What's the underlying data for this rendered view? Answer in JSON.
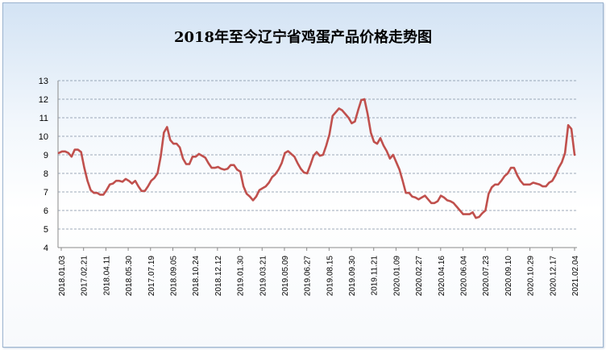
{
  "chart_data": {
    "type": "line",
    "title": "2018年至今辽宁省鸡蛋产品价格走势图",
    "xlabel": "",
    "ylabel": "",
    "ylim": [
      4,
      13
    ],
    "yticks": [
      4,
      5,
      6,
      7,
      8,
      9,
      10,
      11,
      12,
      13
    ],
    "grid": true,
    "legend": "none",
    "line_color": "#c0504d",
    "x_tick_labels": [
      "2018.01.03",
      "2017.02.21",
      "2018.04.11",
      "2018.05.30",
      "2017.07.19",
      "2018.09.05",
      "2018.10.24",
      "2018.12.12",
      "2019.01.30",
      "2019.03.21",
      "2019.05.09",
      "2019.06.27",
      "2019.08.15",
      "2019.09.30",
      "2019.11.21",
      "2020.01.09",
      "2020.02.27",
      "2020.04.16",
      "2020.06.04",
      "2020.07.23",
      "2020.09.10",
      "2020.10.29",
      "2020.12.17",
      "2021.02.04"
    ],
    "series": [
      {
        "values": [
          9.1,
          9.18,
          9.18,
          9.1,
          8.9,
          9.28,
          9.28,
          9.15,
          8.3,
          7.6,
          7.1,
          6.95,
          6.95,
          6.85,
          6.85,
          7.1,
          7.4,
          7.45,
          7.6,
          7.6,
          7.55,
          7.7,
          7.6,
          7.45,
          7.6,
          7.3,
          7.05,
          7.05,
          7.3,
          7.6,
          7.75,
          8.0,
          8.9,
          10.2,
          10.5,
          9.8,
          9.6,
          9.6,
          9.4,
          8.8,
          8.5,
          8.5,
          8.9,
          8.9,
          9.05,
          8.95,
          8.85,
          8.55,
          8.3,
          8.3,
          8.35,
          8.25,
          8.2,
          8.25,
          8.45,
          8.45,
          8.2,
          8.1,
          7.3,
          6.9,
          6.75,
          6.55,
          6.75,
          7.1,
          7.2,
          7.3,
          7.5,
          7.8,
          7.95,
          8.2,
          8.55,
          9.1,
          9.2,
          9.05,
          8.9,
          8.55,
          8.25,
          8.05,
          8.0,
          8.45,
          8.95,
          9.15,
          8.95,
          9.0,
          9.5,
          10.1,
          11.1,
          11.3,
          11.5,
          11.4,
          11.2,
          11.0,
          10.7,
          10.8,
          11.4,
          11.95,
          12.0,
          11.2,
          10.2,
          9.7,
          9.6,
          9.9,
          9.5,
          9.2,
          8.8,
          9.0,
          8.6,
          8.2,
          7.6,
          6.95,
          6.95,
          6.75,
          6.7,
          6.6,
          6.7,
          6.8,
          6.6,
          6.4,
          6.4,
          6.5,
          6.8,
          6.7,
          6.55,
          6.5,
          6.4,
          6.2,
          6.0,
          5.8,
          5.8,
          5.8,
          5.9,
          5.6,
          5.65,
          5.85,
          6.0,
          6.9,
          7.25,
          7.4,
          7.4,
          7.6,
          7.85,
          8.0,
          8.3,
          8.3,
          7.9,
          7.6,
          7.4,
          7.4,
          7.4,
          7.5,
          7.45,
          7.4,
          7.3,
          7.3,
          7.5,
          7.6,
          7.9,
          8.3,
          8.6,
          9.1,
          10.6,
          10.4,
          9.0
        ]
      }
    ]
  }
}
